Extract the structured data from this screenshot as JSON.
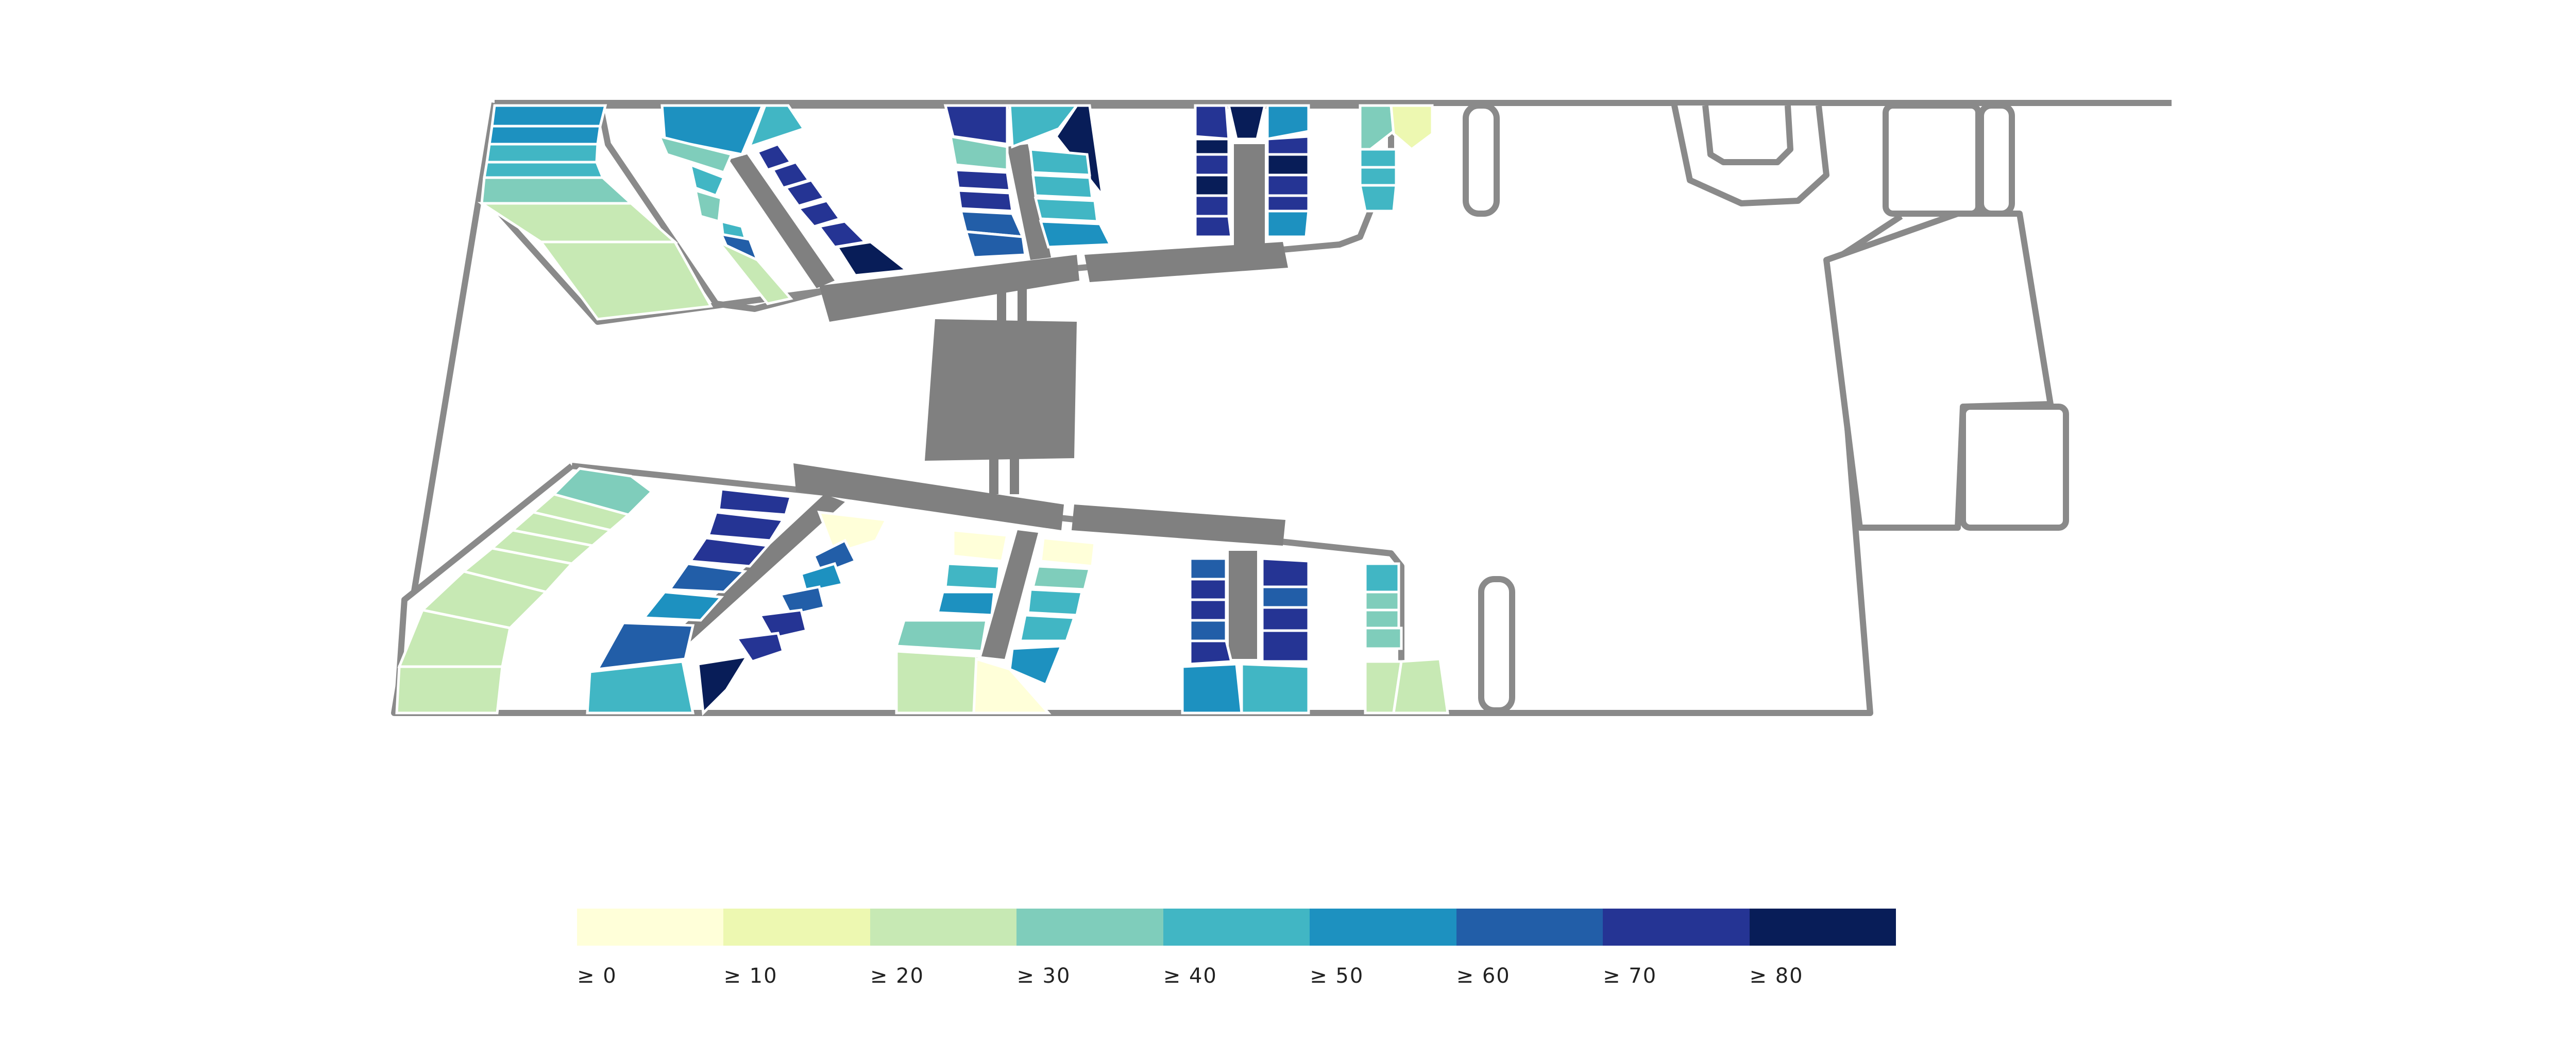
{
  "legend": {
    "bins": [
      {
        "label": "≥ 0",
        "color": "#ffffd9"
      },
      {
        "label": "≥ 10",
        "color": "#edf8b1"
      },
      {
        "label": "≥ 20",
        "color": "#c7e9b4"
      },
      {
        "label": "≥ 30",
        "color": "#7fcdbb"
      },
      {
        "label": "≥ 40",
        "color": "#41b6c4"
      },
      {
        "label": "≥ 50",
        "color": "#1d91c0"
      },
      {
        "label": "≥ 60",
        "color": "#225ea8"
      },
      {
        "label": "≥ 70",
        "color": "#253494"
      },
      {
        "label": "≥ 80",
        "color": "#081d58"
      }
    ]
  },
  "style": {
    "outline_color": "#8a8a8a",
    "road_color": "#808080",
    "background": "#ffffff"
  }
}
